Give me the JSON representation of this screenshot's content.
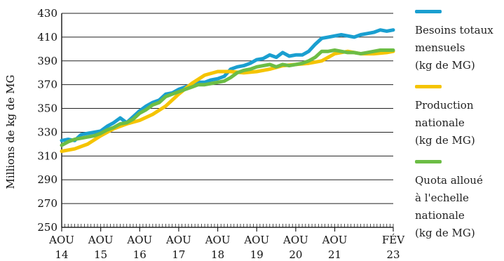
{
  "chart_data": {
    "type": "line",
    "ylabel": "Millions de kg de MG",
    "xlabel": "",
    "title": "",
    "ylim": [
      250,
      430
    ],
    "yticks": [
      250,
      270,
      290,
      310,
      330,
      350,
      370,
      390,
      410,
      430
    ],
    "xlim": [
      "2014-08",
      "2023-02"
    ],
    "xticks": [
      {
        "date": "2014-08",
        "top": "AOU",
        "bottom": "14"
      },
      {
        "date": "2015-08",
        "top": "AOU",
        "bottom": "15"
      },
      {
        "date": "2016-08",
        "top": "AOU",
        "bottom": "16"
      },
      {
        "date": "2017-08",
        "top": "AOU",
        "bottom": "17"
      },
      {
        "date": "2018-08",
        "top": "AOU",
        "bottom": "18"
      },
      {
        "date": "2019-08",
        "top": "AOU",
        "bottom": "19"
      },
      {
        "date": "2020-08",
        "top": "AOU",
        "bottom": "20"
      },
      {
        "date": "2021-08",
        "top": "AOU",
        "bottom": "21"
      },
      {
        "date": "2023-02",
        "top": "FÉV",
        "bottom": "23"
      }
    ],
    "grid": true,
    "minor_ticks": "monthly",
    "legend_position": "right",
    "series": [
      {
        "name": "Besoins totaux mensuels (kg de MG)",
        "color": "#1a9fd0",
        "points": [
          [
            "2014-08",
            323
          ],
          [
            "2014-10",
            324
          ],
          [
            "2014-12",
            323
          ],
          [
            "2015-02",
            328
          ],
          [
            "2015-04",
            329
          ],
          [
            "2015-06",
            330
          ],
          [
            "2015-08",
            331
          ],
          [
            "2015-10",
            335
          ],
          [
            "2015-12",
            338
          ],
          [
            "2016-02",
            342
          ],
          [
            "2016-04",
            338
          ],
          [
            "2016-06",
            343
          ],
          [
            "2016-08",
            348
          ],
          [
            "2016-10",
            352
          ],
          [
            "2016-12",
            355
          ],
          [
            "2017-02",
            357
          ],
          [
            "2017-04",
            362
          ],
          [
            "2017-06",
            363
          ],
          [
            "2017-08",
            366
          ],
          [
            "2017-10",
            368
          ],
          [
            "2017-12",
            370
          ],
          [
            "2018-02",
            372
          ],
          [
            "2018-04",
            372
          ],
          [
            "2018-06",
            374
          ],
          [
            "2018-08",
            375
          ],
          [
            "2018-10",
            377
          ],
          [
            "2018-12",
            383
          ],
          [
            "2019-02",
            385
          ],
          [
            "2019-04",
            386
          ],
          [
            "2019-06",
            388
          ],
          [
            "2019-08",
            391
          ],
          [
            "2019-10",
            392
          ],
          [
            "2019-12",
            395
          ],
          [
            "2020-02",
            393
          ],
          [
            "2020-04",
            397
          ],
          [
            "2020-06",
            394
          ],
          [
            "2020-08",
            395
          ],
          [
            "2020-10",
            395
          ],
          [
            "2020-12",
            398
          ],
          [
            "2021-02",
            404
          ],
          [
            "2021-04",
            409
          ],
          [
            "2021-06",
            410
          ],
          [
            "2021-08",
            411
          ],
          [
            "2021-10",
            412
          ],
          [
            "2021-12",
            411
          ],
          [
            "2022-02",
            410
          ],
          [
            "2022-04",
            412
          ],
          [
            "2022-06",
            413
          ],
          [
            "2022-08",
            414
          ],
          [
            "2022-10",
            416
          ],
          [
            "2022-12",
            415
          ],
          [
            "2023-02",
            416
          ]
        ]
      },
      {
        "name": "Production nationale (kg de MG)",
        "color": "#f5c400",
        "points": [
          [
            "2014-08",
            314
          ],
          [
            "2014-12",
            316
          ],
          [
            "2015-04",
            320
          ],
          [
            "2015-08",
            327
          ],
          [
            "2015-12",
            333
          ],
          [
            "2016-04",
            337
          ],
          [
            "2016-08",
            340
          ],
          [
            "2016-12",
            345
          ],
          [
            "2017-04",
            352
          ],
          [
            "2017-08",
            362
          ],
          [
            "2017-12",
            371
          ],
          [
            "2018-04",
            378
          ],
          [
            "2018-08",
            381
          ],
          [
            "2018-12",
            381
          ],
          [
            "2019-04",
            380
          ],
          [
            "2019-08",
            381
          ],
          [
            "2019-12",
            383
          ],
          [
            "2020-04",
            386
          ],
          [
            "2020-08",
            387
          ],
          [
            "2020-12",
            388
          ],
          [
            "2021-04",
            390
          ],
          [
            "2021-08",
            396
          ],
          [
            "2021-12",
            398
          ],
          [
            "2022-04",
            396
          ],
          [
            "2022-08",
            396
          ],
          [
            "2022-12",
            397
          ],
          [
            "2023-02",
            398
          ]
        ]
      },
      {
        "name": "Quota alloué à l'echelle nationale (kg de MG)",
        "color": "#6cbd45",
        "points": [
          [
            "2014-08",
            319
          ],
          [
            "2014-10",
            322
          ],
          [
            "2014-12",
            324
          ],
          [
            "2015-02",
            325
          ],
          [
            "2015-04",
            326
          ],
          [
            "2015-06",
            327
          ],
          [
            "2015-08",
            329
          ],
          [
            "2015-10",
            332
          ],
          [
            "2015-12",
            334
          ],
          [
            "2016-02",
            337
          ],
          [
            "2016-04",
            338
          ],
          [
            "2016-06",
            341
          ],
          [
            "2016-08",
            346
          ],
          [
            "2016-10",
            349
          ],
          [
            "2016-12",
            353
          ],
          [
            "2017-02",
            355
          ],
          [
            "2017-04",
            360
          ],
          [
            "2017-06",
            362
          ],
          [
            "2017-08",
            364
          ],
          [
            "2017-10",
            366
          ],
          [
            "2017-12",
            368
          ],
          [
            "2018-02",
            370
          ],
          [
            "2018-04",
            370
          ],
          [
            "2018-06",
            371
          ],
          [
            "2018-08",
            372
          ],
          [
            "2018-10",
            373
          ],
          [
            "2018-12",
            376
          ],
          [
            "2019-02",
            380
          ],
          [
            "2019-04",
            382
          ],
          [
            "2019-06",
            383
          ],
          [
            "2019-08",
            385
          ],
          [
            "2019-10",
            386
          ],
          [
            "2019-12",
            387
          ],
          [
            "2020-02",
            385
          ],
          [
            "2020-04",
            387
          ],
          [
            "2020-06",
            386
          ],
          [
            "2020-08",
            387
          ],
          [
            "2020-10",
            388
          ],
          [
            "2020-12",
            390
          ],
          [
            "2021-02",
            393
          ],
          [
            "2021-04",
            398
          ],
          [
            "2021-06",
            398
          ],
          [
            "2021-08",
            399
          ],
          [
            "2021-10",
            398
          ],
          [
            "2021-12",
            397
          ],
          [
            "2022-02",
            397
          ],
          [
            "2022-04",
            396
          ],
          [
            "2022-06",
            397
          ],
          [
            "2022-08",
            398
          ],
          [
            "2022-10",
            399
          ],
          [
            "2022-12",
            399
          ],
          [
            "2023-02",
            399
          ]
        ]
      }
    ]
  },
  "legend": {
    "items": [
      {
        "label": "Besoins totaux\nmensuels\n(kg de MG)",
        "color": "#1a9fd0"
      },
      {
        "label": "Production\nnationale\n(kg de MG)",
        "color": "#f5c400"
      },
      {
        "label": "Quota alloué\nà l'echelle\nnationale\n(kg de MG)",
        "color": "#6cbd45"
      }
    ]
  }
}
